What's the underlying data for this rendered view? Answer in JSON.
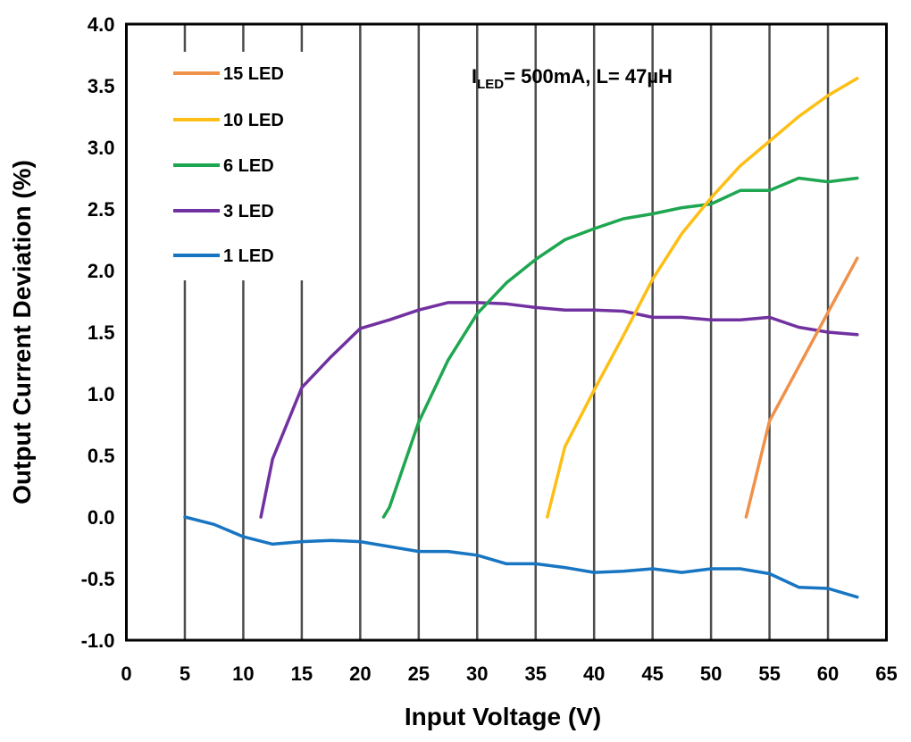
{
  "chart_data": {
    "type": "line",
    "title": "",
    "xlabel": "Input Voltage (V)",
    "ylabel": "Output Current Deviation (%)",
    "xlim": [
      0,
      65
    ],
    "ylim": [
      -1.0,
      4.0
    ],
    "xticks": [
      0,
      5,
      10,
      15,
      20,
      25,
      30,
      35,
      40,
      45,
      50,
      55,
      60,
      65
    ],
    "xtick_labels": [
      "0",
      "5",
      "10",
      "15",
      "20",
      "25",
      "30",
      "35",
      "40",
      "45",
      "50",
      "55",
      "60",
      "65"
    ],
    "yticks": [
      -1.0,
      -0.5,
      0.0,
      0.5,
      1.0,
      1.5,
      2.0,
      2.5,
      3.0,
      3.5,
      4.0
    ],
    "ytick_labels": [
      "-1.0",
      "-0.5",
      "0.0",
      "0.5",
      "1.0",
      "1.5",
      "2.0",
      "2.5",
      "3.0",
      "3.5",
      "4.0"
    ],
    "grid": "vertical",
    "legend_position": "top-left",
    "annotation": {
      "prefix": "I",
      "subscript": "LED",
      "suffix": "= 500mA, L= 47µH"
    },
    "series": [
      {
        "name": "15 LED",
        "color": "#f0914a",
        "x": [
          53,
          55,
          57.5,
          60,
          62.5
        ],
        "y": [
          0.0,
          0.78,
          1.22,
          1.66,
          2.1
        ]
      },
      {
        "name": "10 LED",
        "color": "#fdbf15",
        "x": [
          36,
          37.5,
          40,
          42.5,
          45,
          47.5,
          50,
          52.5,
          55,
          57.5,
          60,
          62.5
        ],
        "y": [
          0.0,
          0.57,
          1.03,
          1.47,
          1.93,
          2.3,
          2.59,
          2.85,
          3.05,
          3.25,
          3.42,
          3.56
        ]
      },
      {
        "name": "6 LED",
        "color": "#1ea650",
        "x": [
          22,
          22.5,
          25,
          27.5,
          30,
          32.5,
          35,
          37.5,
          40,
          42.5,
          45,
          47.5,
          50,
          52.5,
          55,
          57.5,
          60,
          62.5
        ],
        "y": [
          0.0,
          0.08,
          0.77,
          1.27,
          1.65,
          1.9,
          2.09,
          2.25,
          2.34,
          2.42,
          2.46,
          2.51,
          2.54,
          2.65,
          2.65,
          2.75,
          2.72,
          2.75
        ]
      },
      {
        "name": "3 LED",
        "color": "#7131a0",
        "x": [
          11.5,
          12.5,
          15,
          17.5,
          20,
          22.5,
          25,
          27.5,
          30,
          32.5,
          35,
          37.5,
          40,
          42.5,
          45,
          47.5,
          50,
          52.5,
          55,
          57.5,
          60,
          62.5
        ],
        "y": [
          0.0,
          0.47,
          1.05,
          1.3,
          1.53,
          1.6,
          1.68,
          1.74,
          1.74,
          1.73,
          1.7,
          1.68,
          1.68,
          1.67,
          1.62,
          1.62,
          1.6,
          1.6,
          1.62,
          1.54,
          1.5,
          1.48
        ]
      },
      {
        "name": "1 LED",
        "color": "#1775c2",
        "x": [
          5,
          7.5,
          10,
          12.5,
          15,
          17.5,
          20,
          22.5,
          25,
          27.5,
          30,
          32.5,
          35,
          37.5,
          40,
          42.5,
          45,
          47.5,
          50,
          52.5,
          55,
          57.5,
          60,
          62.5
        ],
        "y": [
          0.0,
          -0.06,
          -0.16,
          -0.22,
          -0.2,
          -0.19,
          -0.2,
          -0.24,
          -0.28,
          -0.28,
          -0.31,
          -0.38,
          -0.38,
          -0.41,
          -0.45,
          -0.44,
          -0.42,
          -0.45,
          -0.42,
          -0.42,
          -0.46,
          -0.57,
          -0.58,
          -0.65
        ]
      }
    ]
  }
}
